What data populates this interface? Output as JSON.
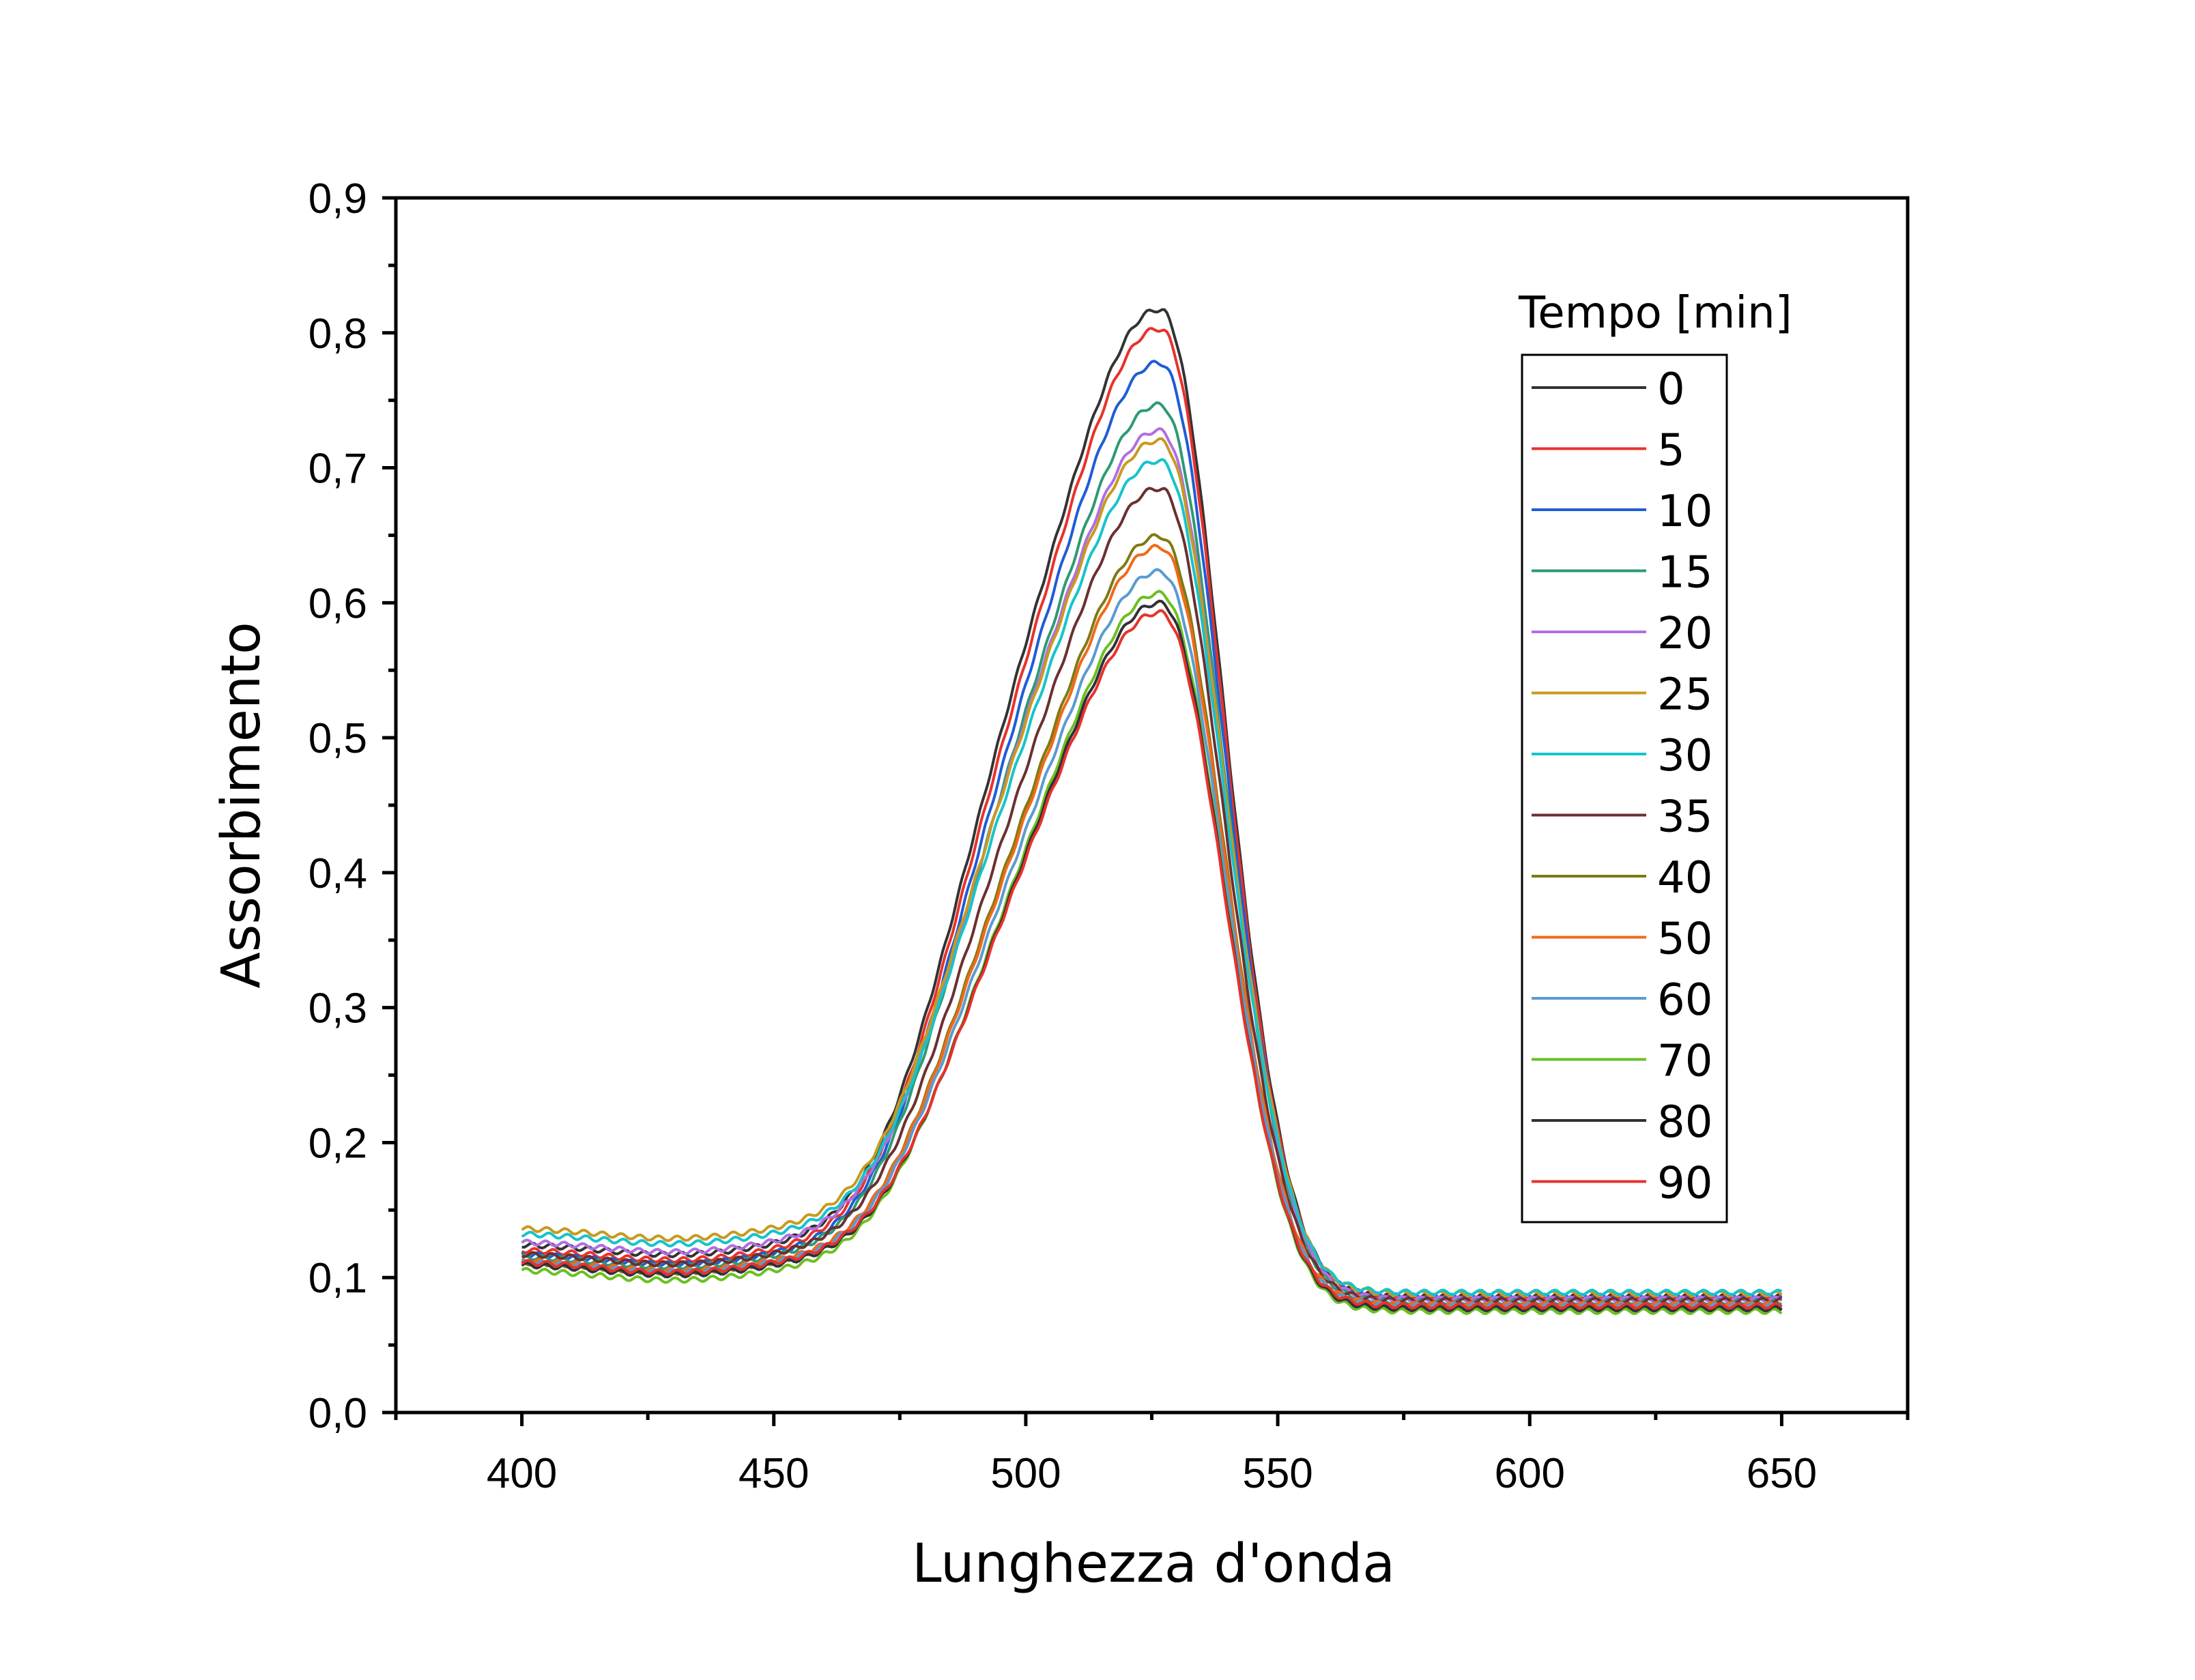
{
  "chart_data": {
    "type": "line",
    "title": "",
    "xlabel": "Lunghezza d'onda",
    "ylabel": "Assorbimento",
    "xlim": [
      375,
      675
    ],
    "ylim": [
      0.0,
      0.9
    ],
    "xticks": [
      {
        "value": 400,
        "label": "400"
      },
      {
        "value": 450,
        "label": "450"
      },
      {
        "value": 500,
        "label": "500"
      },
      {
        "value": 550,
        "label": "550"
      },
      {
        "value": 600,
        "label": "600"
      },
      {
        "value": 650,
        "label": "650"
      }
    ],
    "yticks": [
      {
        "value": 0.0,
        "label": "0,0"
      },
      {
        "value": 0.1,
        "label": "0,1"
      },
      {
        "value": 0.2,
        "label": "0,2"
      },
      {
        "value": 0.3,
        "label": "0,3"
      },
      {
        "value": 0.4,
        "label": "0,4"
      },
      {
        "value": 0.5,
        "label": "0,5"
      },
      {
        "value": 0.6,
        "label": "0,6"
      },
      {
        "value": 0.7,
        "label": "0,7"
      },
      {
        "value": 0.8,
        "label": "0,8"
      },
      {
        "value": 0.9,
        "label": "0,9"
      }
    ],
    "grid": false,
    "legend": {
      "title": "Tempo [min]",
      "position": "top-right"
    },
    "x": [
      400,
      410,
      420,
      430,
      440,
      450,
      460,
      465,
      470,
      475,
      480,
      485,
      490,
      495,
      500,
      505,
      510,
      515,
      520,
      523,
      526,
      528,
      530,
      533,
      536,
      540,
      545,
      550,
      555,
      560,
      570,
      580,
      600,
      625,
      650
    ],
    "series": [
      {
        "name": "0",
        "color": "#333333",
        "peak": 0.811,
        "s": 0.131,
        "b": 0.125,
        "r": 0.086,
        "values": [
          0.125,
          0.125,
          0.125,
          0.126,
          0.131,
          0.14,
          0.156,
          0.169,
          0.188,
          0.218,
          0.263,
          0.315,
          0.356,
          0.387,
          0.418,
          0.475,
          0.554,
          0.651,
          0.753,
          0.795,
          0.811,
          0.809,
          0.796,
          0.745,
          0.664,
          0.515,
          0.341,
          0.182,
          0.131,
          0.106,
          0.095,
          0.091,
          0.089,
          0.087,
          0.086
        ]
      },
      {
        "name": "5",
        "color": "#e8322b",
        "peak": 0.797,
        "s": 0.126,
        "b": 0.121,
        "r": 0.085,
        "values": [
          0.121,
          0.121,
          0.121,
          0.122,
          0.127,
          0.136,
          0.152,
          0.164,
          0.183,
          0.212,
          0.255,
          0.305,
          0.346,
          0.376,
          0.406,
          0.462,
          0.541,
          0.637,
          0.738,
          0.78,
          0.797,
          0.795,
          0.782,
          0.732,
          0.653,
          0.506,
          0.336,
          0.18,
          0.129,
          0.104,
          0.094,
          0.09,
          0.088,
          0.086,
          0.085
        ]
      },
      {
        "name": "10",
        "color": "#1f5cd6",
        "peak": 0.772,
        "s": 0.121,
        "b": 0.118,
        "r": 0.086,
        "values": [
          0.118,
          0.118,
          0.118,
          0.119,
          0.124,
          0.132,
          0.147,
          0.159,
          0.177,
          0.205,
          0.246,
          0.295,
          0.334,
          0.363,
          0.392,
          0.447,
          0.524,
          0.617,
          0.715,
          0.756,
          0.772,
          0.77,
          0.757,
          0.709,
          0.633,
          0.491,
          0.327,
          0.179,
          0.13,
          0.105,
          0.095,
          0.091,
          0.089,
          0.087,
          0.086
        ]
      },
      {
        "name": "15",
        "color": "#2e9a72",
        "peak": 0.741,
        "s": 0.117,
        "b": 0.116,
        "r": 0.082,
        "values": [
          0.116,
          0.116,
          0.116,
          0.117,
          0.121,
          0.129,
          0.143,
          0.154,
          0.171,
          0.198,
          0.237,
          0.284,
          0.321,
          0.349,
          0.377,
          0.429,
          0.503,
          0.593,
          0.687,
          0.726,
          0.741,
          0.739,
          0.727,
          0.681,
          0.608,
          0.472,
          0.314,
          0.172,
          0.125,
          0.101,
          0.091,
          0.087,
          0.085,
          0.083,
          0.082
        ]
      },
      {
        "name": "20",
        "color": "#b06fe0",
        "peak": 0.722,
        "s": 0.115,
        "b": 0.127,
        "r": 0.084,
        "values": [
          0.127,
          0.126,
          0.125,
          0.125,
          0.128,
          0.135,
          0.148,
          0.158,
          0.173,
          0.198,
          0.235,
          0.279,
          0.314,
          0.341,
          0.368,
          0.419,
          0.491,
          0.579,
          0.67,
          0.708,
          0.722,
          0.72,
          0.708,
          0.664,
          0.593,
          0.462,
          0.31,
          0.172,
          0.126,
          0.103,
          0.093,
          0.089,
          0.087,
          0.085,
          0.084
        ]
      },
      {
        "name": "25",
        "color": "#c89a1e",
        "peak": 0.715,
        "s": 0.11,
        "b": 0.137,
        "r": 0.088,
        "values": [
          0.137,
          0.135,
          0.133,
          0.133,
          0.135,
          0.141,
          0.153,
          0.162,
          0.176,
          0.199,
          0.233,
          0.275,
          0.308,
          0.333,
          0.358,
          0.408,
          0.48,
          0.567,
          0.659,
          0.699,
          0.715,
          0.713,
          0.701,
          0.658,
          0.588,
          0.46,
          0.311,
          0.176,
          0.131,
          0.107,
          0.097,
          0.093,
          0.091,
          0.089,
          0.088
        ]
      },
      {
        "name": "30",
        "color": "#17c3cc",
        "peak": 0.7,
        "s": 0.108,
        "b": 0.133,
        "r": 0.089,
        "values": [
          0.133,
          0.131,
          0.13,
          0.13,
          0.132,
          0.138,
          0.15,
          0.158,
          0.172,
          0.194,
          0.228,
          0.268,
          0.3,
          0.325,
          0.35,
          0.399,
          0.469,
          0.555,
          0.645,
          0.684,
          0.7,
          0.698,
          0.686,
          0.644,
          0.576,
          0.451,
          0.306,
          0.175,
          0.131,
          0.108,
          0.098,
          0.094,
          0.092,
          0.09,
          0.089
        ]
      },
      {
        "name": "35",
        "color": "#6b3030",
        "peak": 0.68,
        "s": 0.1,
        "b": 0.118,
        "r": 0.083,
        "values": [
          0.118,
          0.118,
          0.117,
          0.117,
          0.12,
          0.127,
          0.139,
          0.148,
          0.162,
          0.185,
          0.218,
          0.258,
          0.29,
          0.314,
          0.338,
          0.386,
          0.455,
          0.538,
          0.627,
          0.665,
          0.68,
          0.678,
          0.667,
          0.625,
          0.558,
          0.436,
          0.294,
          0.165,
          0.123,
          0.101,
          0.091,
          0.087,
          0.085,
          0.084,
          0.083
        ]
      },
      {
        "name": "40",
        "color": "#7f7a12",
        "peak": 0.645,
        "s": 0.09,
        "b": 0.112,
        "r": 0.078,
        "values": [
          0.112,
          0.112,
          0.111,
          0.111,
          0.114,
          0.121,
          0.133,
          0.141,
          0.155,
          0.176,
          0.207,
          0.243,
          0.272,
          0.294,
          0.316,
          0.362,
          0.428,
          0.509,
          0.594,
          0.631,
          0.645,
          0.643,
          0.632,
          0.593,
          0.529,
          0.413,
          0.278,
          0.156,
          0.116,
          0.095,
          0.086,
          0.082,
          0.08,
          0.079,
          0.078
        ]
      },
      {
        "name": "50",
        "color": "#ef6a1a",
        "peak": 0.637,
        "s": 0.088,
        "b": 0.113,
        "r": 0.08,
        "values": [
          0.113,
          0.113,
          0.112,
          0.112,
          0.115,
          0.122,
          0.133,
          0.141,
          0.154,
          0.175,
          0.205,
          0.241,
          0.269,
          0.29,
          0.312,
          0.358,
          0.423,
          0.503,
          0.587,
          0.623,
          0.637,
          0.635,
          0.624,
          0.586,
          0.523,
          0.409,
          0.276,
          0.156,
          0.117,
          0.096,
          0.087,
          0.083,
          0.082,
          0.081,
          0.08
        ]
      },
      {
        "name": "60",
        "color": "#5a9bd0",
        "peak": 0.619,
        "s": 0.085,
        "b": 0.112,
        "r": 0.079,
        "values": [
          0.112,
          0.112,
          0.111,
          0.111,
          0.114,
          0.12,
          0.131,
          0.139,
          0.152,
          0.172,
          0.201,
          0.235,
          0.262,
          0.283,
          0.304,
          0.349,
          0.412,
          0.489,
          0.571,
          0.606,
          0.619,
          0.617,
          0.607,
          0.57,
          0.509,
          0.398,
          0.27,
          0.153,
          0.115,
          0.095,
          0.086,
          0.082,
          0.081,
          0.08,
          0.079
        ]
      },
      {
        "name": "70",
        "color": "#6cbf22",
        "peak": 0.603,
        "s": 0.082,
        "b": 0.106,
        "r": 0.075,
        "values": [
          0.106,
          0.106,
          0.105,
          0.105,
          0.108,
          0.114,
          0.125,
          0.133,
          0.145,
          0.165,
          0.193,
          0.226,
          0.252,
          0.272,
          0.293,
          0.337,
          0.398,
          0.474,
          0.554,
          0.589,
          0.603,
          0.601,
          0.591,
          0.555,
          0.495,
          0.386,
          0.26,
          0.146,
          0.109,
          0.09,
          0.081,
          0.078,
          0.076,
          0.075,
          0.075
        ]
      },
      {
        "name": "80",
        "color": "#303038",
        "peak": 0.596,
        "s": 0.079,
        "b": 0.11,
        "r": 0.077,
        "values": [
          0.11,
          0.11,
          0.109,
          0.109,
          0.112,
          0.118,
          0.128,
          0.136,
          0.148,
          0.167,
          0.195,
          0.227,
          0.253,
          0.273,
          0.293,
          0.336,
          0.397,
          0.471,
          0.549,
          0.583,
          0.596,
          0.594,
          0.584,
          0.548,
          0.49,
          0.383,
          0.259,
          0.147,
          0.111,
          0.092,
          0.083,
          0.08,
          0.078,
          0.077,
          0.077
        ]
      },
      {
        "name": "90",
        "color": "#e8322b",
        "peak": 0.589,
        "s": 0.078,
        "b": 0.112,
        "r": 0.079,
        "values": [
          0.112,
          0.112,
          0.111,
          0.111,
          0.114,
          0.12,
          0.13,
          0.137,
          0.149,
          0.168,
          0.195,
          0.227,
          0.252,
          0.271,
          0.291,
          0.333,
          0.393,
          0.466,
          0.543,
          0.576,
          0.589,
          0.587,
          0.577,
          0.542,
          0.485,
          0.38,
          0.258,
          0.148,
          0.112,
          0.093,
          0.085,
          0.082,
          0.08,
          0.079,
          0.079
        ]
      }
    ]
  }
}
